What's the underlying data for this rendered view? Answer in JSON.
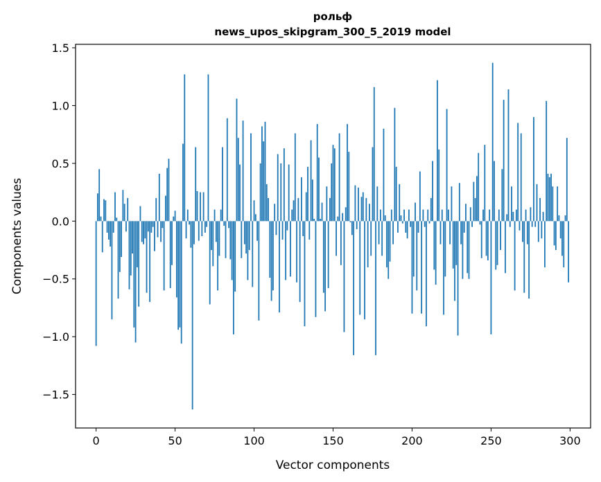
{
  "chart_data": {
    "type": "bar",
    "title": "рольф",
    "subtitle": "news_upos_skipgram_300_5_2019 model",
    "xlabel": "Vector components",
    "ylabel": "Components values",
    "xlim": [
      -13,
      313
    ],
    "ylim": [
      -1.79,
      1.53
    ],
    "xticks": [
      0,
      50,
      100,
      150,
      200,
      250,
      300
    ],
    "xtick_labels": [
      "0",
      "50",
      "100",
      "150",
      "200",
      "250",
      "300"
    ],
    "yticks": [
      -1.5,
      -1.0,
      -0.5,
      0.0,
      0.5,
      1.0,
      1.5
    ],
    "ytick_labels": [
      "−1.5",
      "−1.0",
      "−0.5",
      "0.0",
      "0.5",
      "1.0",
      "1.5"
    ],
    "grid": false,
    "color": "#1f77b4",
    "values": [
      -1.08,
      0.24,
      0.45,
      0.04,
      -0.27,
      0.19,
      0.18,
      -0.1,
      -0.16,
      -0.22,
      -0.85,
      -0.1,
      0.25,
      0.03,
      -0.67,
      -0.44,
      -0.31,
      0.27,
      0.15,
      -0.09,
      0.2,
      -0.59,
      -0.47,
      -0.28,
      -0.92,
      -1.05,
      -0.4,
      -0.74,
      0.13,
      -0.18,
      -0.2,
      -0.15,
      -0.62,
      -0.09,
      -0.7,
      -0.1,
      -0.05,
      -0.26,
      0.2,
      -0.14,
      0.41,
      -0.18,
      -0.06,
      -0.6,
      0.22,
      0.46,
      0.54,
      -0.58,
      -0.38,
      0.04,
      0.09,
      -0.66,
      -0.94,
      -0.92,
      -1.06,
      0.67,
      1.27,
      -0.15,
      0.1,
      -0.03,
      -0.23,
      -1.63,
      -0.2,
      0.64,
      0.26,
      -0.17,
      0.25,
      -0.13,
      0.25,
      -0.1,
      -0.05,
      1.27,
      -0.72,
      -0.25,
      -0.39,
      0.1,
      -0.18,
      -0.6,
      -0.3,
      0.1,
      0.64,
      -0.04,
      -0.32,
      0.89,
      -0.06,
      -0.33,
      -0.51,
      -0.98,
      -0.61,
      1.06,
      0.72,
      0.49,
      -0.32,
      0.87,
      -0.2,
      -0.28,
      -0.51,
      -0.25,
      0.76,
      -0.57,
      0.18,
      0.06,
      -0.17,
      -0.86,
      0.5,
      0.82,
      0.69,
      0.86,
      0.32,
      0.2,
      -0.49,
      -0.69,
      -0.6,
      0.15,
      -0.12,
      0.58,
      -0.79,
      0.5,
      -0.16,
      0.63,
      -0.51,
      -0.08,
      0.49,
      -0.48,
      0.1,
      0.18,
      0.76,
      -0.53,
      0.2,
      -0.7,
      0.38,
      -0.13,
      -0.91,
      0.25,
      0.47,
      -0.16,
      0.7,
      0.36,
      0.02,
      -0.83,
      0.84,
      0.55,
      0.02,
      0.16,
      -0.62,
      -0.78,
      0.3,
      -0.58,
      0.2,
      0.5,
      0.66,
      0.63,
      -0.3,
      0.04,
      0.76,
      -0.38,
      0.07,
      -0.96,
      0.12,
      0.84,
      0.6,
      -0.01,
      -0.12,
      -1.16,
      0.31,
      -0.07,
      0.29,
      -0.81,
      0.21,
      0.25,
      -0.85,
      0.2,
      -0.4,
      0.15,
      -0.3,
      0.64,
      1.16,
      -1.16,
      0.3,
      -0.2,
      0.1,
      -0.3,
      0.8,
      0.05,
      -0.4,
      -0.5,
      -0.35,
      0.1,
      -0.2,
      0.98,
      0.47,
      -0.1,
      0.32,
      0.05,
      -0.02,
      0.1,
      -0.1,
      -0.15,
      0.1,
      -0.05,
      -0.8,
      -0.48,
      0.16,
      -0.6,
      -0.1,
      0.43,
      -0.8,
      0.1,
      -0.05,
      -0.91,
      0.1,
      -0.02,
      0.2,
      0.52,
      -0.42,
      -0.55,
      1.22,
      0.62,
      -0.2,
      0.1,
      -0.81,
      -0.48,
      0.97,
      0.1,
      -0.2,
      0.3,
      -0.41,
      -0.69,
      -0.38,
      -0.99,
      0.33,
      -0.2,
      -0.5,
      -0.1,
      0.15,
      -0.45,
      -0.5,
      0.12,
      -0.05,
      0.34,
      0.2,
      0.39,
      0.59,
      -0.03,
      -0.32,
      0.1,
      0.66,
      -0.3,
      -0.34,
      0.1,
      -0.98,
      1.37,
      0.52,
      -0.42,
      -0.38,
      0.1,
      -0.25,
      0.45,
      1.05,
      -0.45,
      0.06,
      1.14,
      -0.05,
      0.3,
      0.08,
      -0.6,
      0.1,
      0.85,
      -0.08,
      0.76,
      -0.18,
      -0.62,
      0.1,
      -0.2,
      -0.67,
      0.12,
      -0.05,
      0.9,
      -0.05,
      0.32,
      -0.18,
      0.2,
      -0.15,
      0.08,
      -0.4,
      1.04,
      0.41,
      0.38,
      0.41,
      0.3,
      -0.21,
      -0.25,
      0.3,
      0.05,
      -0.15,
      -0.3,
      -0.4,
      0.05,
      0.72,
      -0.53
    ]
  }
}
